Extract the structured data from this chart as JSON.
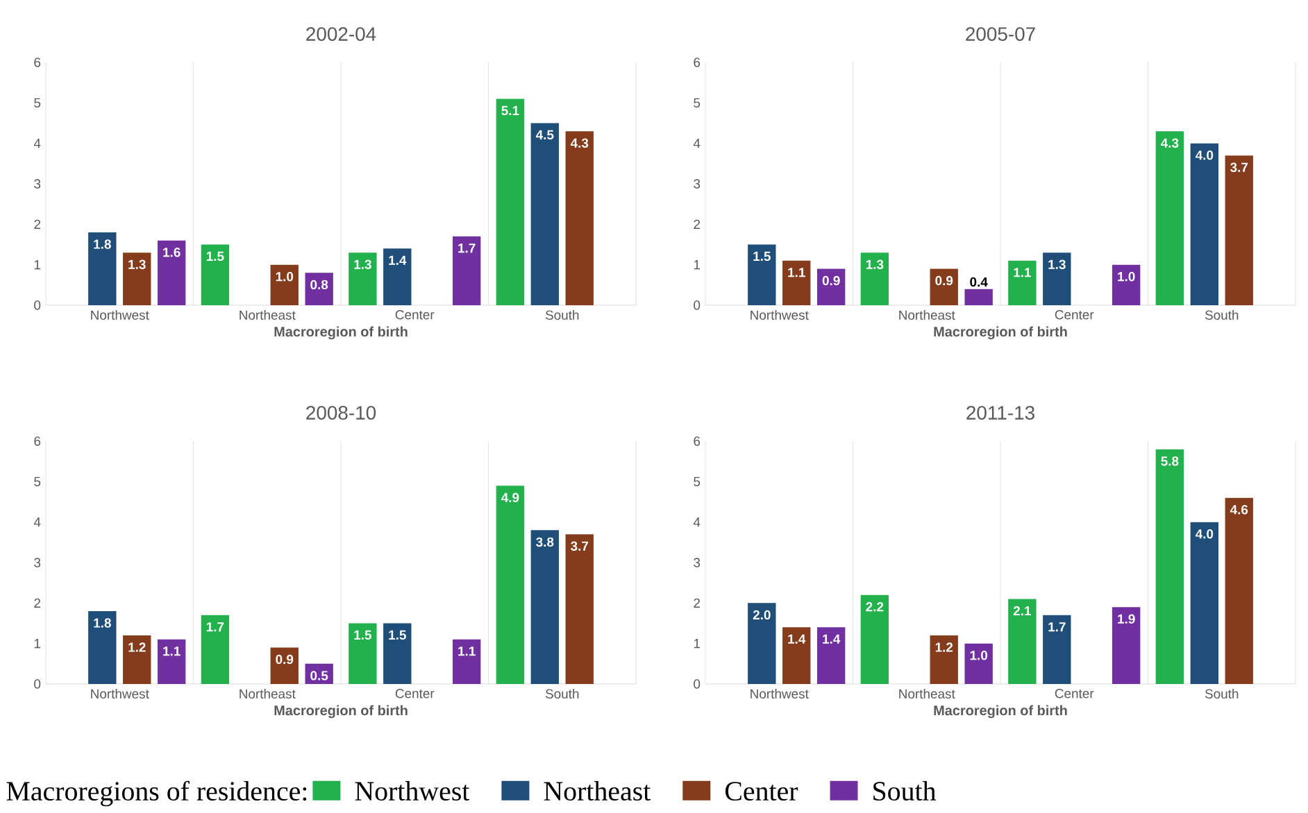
{
  "chart_data": [
    {
      "type": "bar",
      "title": "2002-04",
      "xlabel": "Macroregion of birth",
      "categories": [
        "Northwest",
        "Northeast",
        "Center",
        "South"
      ],
      "ylim": [
        0,
        6
      ],
      "yticks": [
        0,
        1,
        2,
        3,
        4,
        5,
        6
      ],
      "grid": "x",
      "legend": "bottom",
      "legend_title": "Macroregions of residence:",
      "series": [
        {
          "name": "Northwest",
          "color": "#22b14c",
          "values": [
            null,
            1.5,
            1.3,
            5.1
          ],
          "value_labels": [
            null,
            "1.5",
            "1.3",
            "5.1"
          ]
        },
        {
          "name": "Northeast",
          "color": "#1f4e79",
          "values": [
            1.8,
            null,
            1.4,
            4.5
          ],
          "value_labels": [
            "1.8",
            null,
            "1.4",
            "4.5"
          ]
        },
        {
          "name": "Center",
          "color": "#843c1c",
          "values": [
            1.3,
            1.0,
            null,
            4.3
          ],
          "value_labels": [
            "1.3",
            "1.0",
            null,
            "4.3"
          ]
        },
        {
          "name": "South",
          "color": "#7030a0",
          "values": [
            1.6,
            0.8,
            1.7,
            null
          ],
          "value_labels": [
            "1.6",
            "0.8",
            "1.7",
            null
          ]
        }
      ]
    },
    {
      "type": "bar",
      "title": "2005-07",
      "xlabel": "Macroregion of birth",
      "categories": [
        "Northwest",
        "Northeast",
        "Center",
        "South"
      ],
      "ylim": [
        0,
        6
      ],
      "yticks": [
        0,
        1,
        2,
        3,
        4,
        5,
        6
      ],
      "grid": "x",
      "series": [
        {
          "color": "#22b14c",
          "values": [
            null,
            1.3,
            1.1,
            4.3
          ],
          "value_labels": [
            null,
            "1.3",
            "1.1",
            "4.3"
          ]
        },
        {
          "color": "#1f4e79",
          "values": [
            1.5,
            null,
            1.3,
            4.0
          ],
          "value_labels": [
            "1.5",
            null,
            "1.3",
            "4.0"
          ]
        },
        {
          "color": "#843c1c",
          "values": [
            1.1,
            0.9,
            null,
            3.7
          ],
          "value_labels": [
            "1.1",
            "0.9",
            null,
            "3.7"
          ]
        },
        {
          "color": "#7030a0",
          "values": [
            0.9,
            0.4,
            1.0,
            null
          ],
          "value_labels": [
            "0.9",
            "0.4",
            "1.0",
            null
          ]
        }
      ]
    },
    {
      "type": "bar",
      "title": "2008-10",
      "xlabel": "Macroregion of birth",
      "categories": [
        "Northwest",
        "Northeast",
        "Center",
        "South"
      ],
      "ylim": [
        0,
        6
      ],
      "yticks": [
        0,
        1,
        2,
        3,
        4,
        5,
        6
      ],
      "grid": "x",
      "series": [
        {
          "color": "#22b14c",
          "values": [
            null,
            1.7,
            1.5,
            4.9
          ],
          "value_labels": [
            null,
            "1.7",
            "1.5",
            "4.9"
          ]
        },
        {
          "color": "#1f4e79",
          "values": [
            1.8,
            null,
            1.5,
            3.8
          ],
          "value_labels": [
            "1.8",
            null,
            "1.5",
            "3.8"
          ]
        },
        {
          "color": "#843c1c",
          "values": [
            1.2,
            0.9,
            null,
            3.7
          ],
          "value_labels": [
            "1.2",
            "0.9",
            null,
            "3.7"
          ]
        },
        {
          "color": "#7030a0",
          "values": [
            1.1,
            0.5,
            1.1,
            null
          ],
          "value_labels": [
            "1.1",
            "0.5",
            "1.1",
            null
          ]
        }
      ]
    },
    {
      "type": "bar",
      "title": "2011-13",
      "xlabel": "Macroregion of birth",
      "categories": [
        "Northwest",
        "Northeast",
        "Center",
        "South"
      ],
      "ylim": [
        0,
        6
      ],
      "yticks": [
        0,
        1,
        2,
        3,
        4,
        5,
        6
      ],
      "grid": "x",
      "series": [
        {
          "color": "#22b14c",
          "values": [
            null,
            2.2,
            2.1,
            5.8
          ],
          "value_labels": [
            null,
            "2.2",
            "2.1",
            "5.8"
          ]
        },
        {
          "color": "#1f4e79",
          "values": [
            2.0,
            null,
            1.7,
            4.0
          ],
          "value_labels": [
            "2.0",
            null,
            "1.7",
            "4.0"
          ]
        },
        {
          "color": "#843c1c",
          "values": [
            1.4,
            1.2,
            null,
            4.6
          ],
          "value_labels": [
            "1.4",
            "1.2",
            null,
            "4.6"
          ]
        },
        {
          "color": "#7030a0",
          "values": [
            1.4,
            1.0,
            1.9,
            null
          ],
          "value_labels": [
            "1.4",
            "1.0",
            "1.9",
            null
          ]
        }
      ]
    }
  ]
}
